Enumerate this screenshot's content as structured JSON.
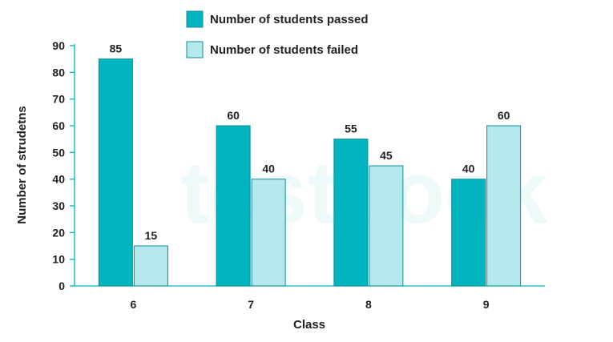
{
  "chart_data": {
    "type": "bar",
    "xlabel": "Class",
    "ylabel": "Number of strudetns",
    "categories": [
      "6",
      "7",
      "8",
      "9"
    ],
    "series": [
      {
        "name": "Number of students passed",
        "values": [
          85,
          60,
          55,
          40
        ],
        "color": "#00b4c0"
      },
      {
        "name": "Number of students failed",
        "values": [
          15,
          40,
          45,
          60
        ],
        "color": "#b4e8ec"
      }
    ],
    "ylim": [
      0,
      90
    ],
    "yticks": [
      0,
      10,
      20,
      30,
      40,
      50,
      60,
      70,
      80,
      90
    ],
    "grid": false,
    "legend_position": "top-center",
    "data_labels": true
  },
  "watermark": {
    "text": "testbook"
  },
  "colors": {
    "axis": "#00b4c0",
    "bar_border": "#0a8f99"
  }
}
